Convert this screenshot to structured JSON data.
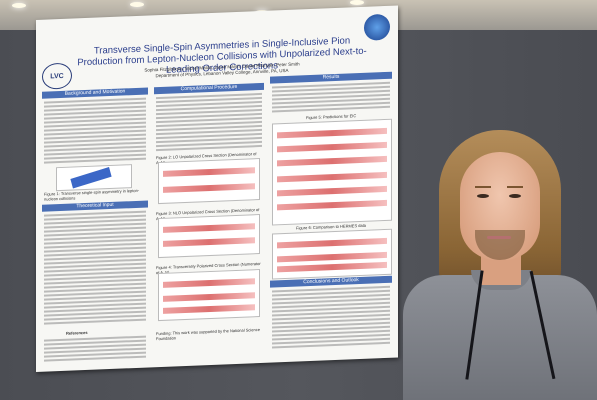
{
  "poster": {
    "title": "Transverse Single-Spin Asymmetries in Single-Inclusive Pion Production from Lepton-Nucleon Collisions with Unpolarized Next-to-Leading Order Corrections",
    "authors": "Sophia Fitzgibbons, Michel Malda, Jacob Marsh, Daniel Pitonyak, Peter Smith",
    "affiliation": "Department of Physics, Lebanon Valley College, Annville, PA, USA",
    "logo_text": "LVC",
    "sections": {
      "background": "Background and Motivation",
      "computational": "Computational Procedure",
      "theory": "Theoretical Input",
      "results": "Results",
      "conclusions": "Conclusions and Outlook"
    },
    "captions": {
      "fig1": "Figure 1: Transverse single-spin asymmetry in lepton-nucleon collisions",
      "fig2": "Figure 2: LO Unpolarized Cross Section (Denominator of A_N)",
      "fig3": "Figure 3: NLO Unpolarized Cross Section (Denominator of A_N)",
      "fig4": "Figure 4: Transversely Polarized Cross Section (Numerator of A_N)",
      "fig5": "Figure 5: Predictions for EIC",
      "fig6": "Figure 6: Comparison to HERMES data",
      "references": "References",
      "funding": "Funding: This work was supported by the National Science Foundation"
    }
  }
}
